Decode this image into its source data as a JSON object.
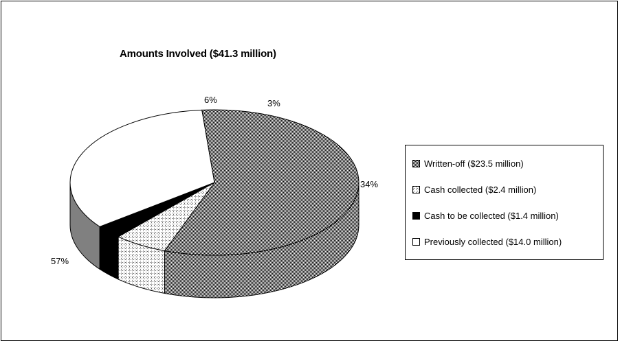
{
  "chart_data": {
    "type": "pie",
    "style": "3d",
    "title": "Amounts Involved ($41.3 million)",
    "slices": [
      {
        "legend": "Written-off ($23.5 million)",
        "label": "57%",
        "value": 57,
        "fill": "dense-cross",
        "color": "#9a9a9a"
      },
      {
        "legend": "Cash collected ($2.4 million)",
        "label": "6%",
        "value": 6,
        "fill": "light-dots",
        "color": "#dedede"
      },
      {
        "legend": "Cash to be collected ($1.4 million)",
        "label": "3%",
        "value": 3,
        "fill": "solid",
        "color": "#000000"
      },
      {
        "legend": "Previously collected ($14.0 million)",
        "label": "34%",
        "value": 34,
        "fill": "solid",
        "color": "#ffffff"
      }
    ],
    "legend_position": "right"
  }
}
